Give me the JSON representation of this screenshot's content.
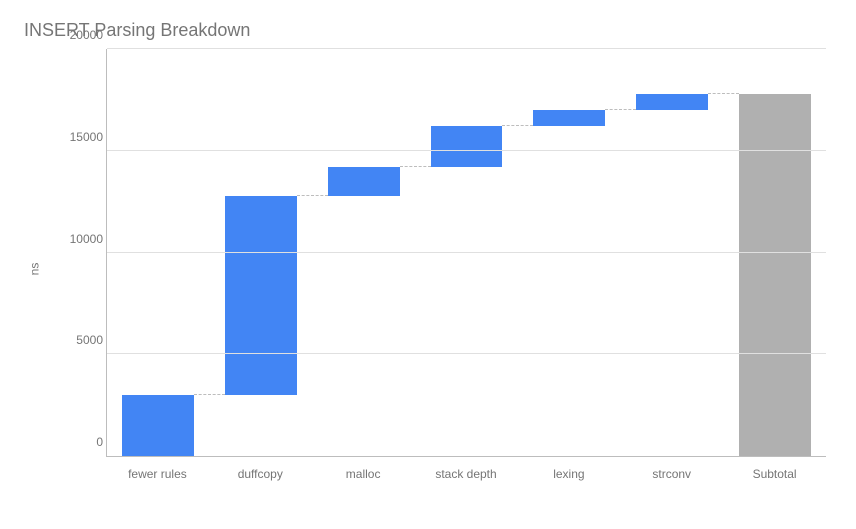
{
  "chart": {
    "type": "waterfall",
    "title": "INSERT Parsing Breakdown",
    "title_fontsize": 18,
    "title_color": "#757575",
    "ylabel": "ns",
    "label_fontsize": 12,
    "label_color": "#757575",
    "ylim": [
      0,
      20000
    ],
    "ytick_step": 5000,
    "yticks": [
      0,
      5000,
      10000,
      15000,
      20000
    ],
    "grid_color": "#e0e0e0",
    "axis_color": "#bdbdbd",
    "connector_color": "#bdbdbd",
    "connector_style": "dashed",
    "background_color": "#ffffff",
    "bar_width": 0.7,
    "categories": [
      "fewer rules",
      "duffcopy",
      "malloc",
      "stack depth",
      "lexing",
      "strconv",
      "Subtotal"
    ],
    "bars": [
      {
        "label": "fewer rules",
        "start": 0,
        "end": 3000,
        "color": "#4285f4",
        "is_total": false
      },
      {
        "label": "duffcopy",
        "start": 3000,
        "end": 12800,
        "color": "#4285f4",
        "is_total": false
      },
      {
        "label": "malloc",
        "start": 12800,
        "end": 14200,
        "color": "#4285f4",
        "is_total": false
      },
      {
        "label": "stack depth",
        "start": 14200,
        "end": 16200,
        "color": "#4285f4",
        "is_total": false
      },
      {
        "label": "lexing",
        "start": 16200,
        "end": 17000,
        "color": "#4285f4",
        "is_total": false
      },
      {
        "label": "strconv",
        "start": 17000,
        "end": 17800,
        "color": "#4285f4",
        "is_total": false
      },
      {
        "label": "Subtotal",
        "start": 0,
        "end": 17800,
        "color": "#b0b0b0",
        "is_total": true
      }
    ]
  }
}
